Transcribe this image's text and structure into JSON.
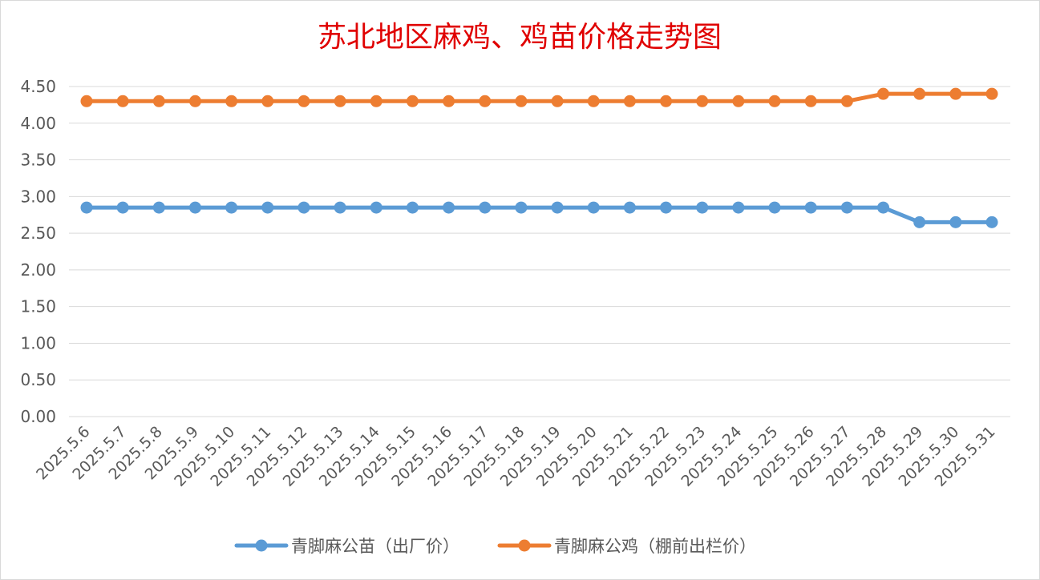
{
  "chart_data": {
    "type": "line",
    "title": "苏北地区麻鸡、鸡苗价格走势图",
    "categories": [
      "2025.5.6",
      "2025.5.7",
      "2025.5.8",
      "2025.5.9",
      "2025.5.10",
      "2025.5.11",
      "2025.5.12",
      "2025.5.13",
      "2025.5.14",
      "2025.5.15",
      "2025.5.16",
      "2025.5.17",
      "2025.5.18",
      "2025.5.19",
      "2025.5.20",
      "2025.5.21",
      "2025.5.22",
      "2025.5.23",
      "2025.5.24",
      "2025.5.25",
      "2025.5.26",
      "2025.5.27",
      "2025.5.28",
      "2025.5.29",
      "2025.5.30",
      "2025.5.31"
    ],
    "yticks": [
      "0.00",
      "0.50",
      "1.00",
      "1.50",
      "2.00",
      "2.50",
      "3.00",
      "3.50",
      "4.00",
      "4.50"
    ],
    "ylim": [
      0,
      4.5
    ],
    "grid": true,
    "legend_position": "bottom",
    "series": [
      {
        "name": "青脚麻公苗（出厂价）",
        "color": "#5b9bd5",
        "values": [
          2.85,
          2.85,
          2.85,
          2.85,
          2.85,
          2.85,
          2.85,
          2.85,
          2.85,
          2.85,
          2.85,
          2.85,
          2.85,
          2.85,
          2.85,
          2.85,
          2.85,
          2.85,
          2.85,
          2.85,
          2.85,
          2.85,
          2.85,
          2.65,
          2.65,
          2.65
        ]
      },
      {
        "name": "青脚麻公鸡（棚前出栏价）",
        "color": "#ed7d31",
        "values": [
          4.3,
          4.3,
          4.3,
          4.3,
          4.3,
          4.3,
          4.3,
          4.3,
          4.3,
          4.3,
          4.3,
          4.3,
          4.3,
          4.3,
          4.3,
          4.3,
          4.3,
          4.3,
          4.3,
          4.3,
          4.3,
          4.3,
          4.4,
          4.4,
          4.4,
          4.4
        ]
      }
    ]
  }
}
